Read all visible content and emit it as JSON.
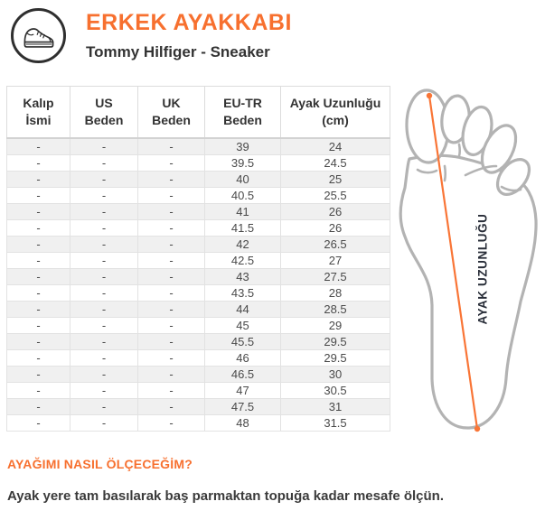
{
  "header": {
    "title": "ERKEK AYAKKABI",
    "subtitle": "Tommy Hilfiger - Sneaker",
    "icon": "sneaker-icon"
  },
  "table": {
    "columns": [
      "Kalıp\nİsmi",
      "US\nBeden",
      "UK\nBeden",
      "EU-TR\nBeden",
      "Ayak Uzunluğu\n(cm)"
    ],
    "rows": [
      [
        "-",
        "-",
        "-",
        "39",
        "24"
      ],
      [
        "-",
        "-",
        "-",
        "39.5",
        "24.5"
      ],
      [
        "-",
        "-",
        "-",
        "40",
        "25"
      ],
      [
        "-",
        "-",
        "-",
        "40.5",
        "25.5"
      ],
      [
        "-",
        "-",
        "-",
        "41",
        "26"
      ],
      [
        "-",
        "-",
        "-",
        "41.5",
        "26"
      ],
      [
        "-",
        "-",
        "-",
        "42",
        "26.5"
      ],
      [
        "-",
        "-",
        "-",
        "42.5",
        "27"
      ],
      [
        "-",
        "-",
        "-",
        "43",
        "27.5"
      ],
      [
        "-",
        "-",
        "-",
        "43.5",
        "28"
      ],
      [
        "-",
        "-",
        "-",
        "44",
        "28.5"
      ],
      [
        "-",
        "-",
        "-",
        "45",
        "29"
      ],
      [
        "-",
        "-",
        "-",
        "45.5",
        "29.5"
      ],
      [
        "-",
        "-",
        "-",
        "46",
        "29.5"
      ],
      [
        "-",
        "-",
        "-",
        "46.5",
        "30"
      ],
      [
        "-",
        "-",
        "-",
        "47",
        "30.5"
      ],
      [
        "-",
        "-",
        "-",
        "47.5",
        "31"
      ],
      [
        "-",
        "-",
        "-",
        "48",
        "31.5"
      ]
    ]
  },
  "diagram": {
    "label": "AYAK UZUNLUĞU",
    "icon": "foot-sole-illustration"
  },
  "footer": {
    "heading": "AYAĞIMI NASIL ÖLÇECEĞİM?",
    "body": "Ayak yere tam basılarak baş parmaktan topuğa kadar mesafe ölçün."
  },
  "colors": {
    "accent": "#f7702f",
    "text_dark": "#3a3a3a",
    "table_border": "#e2e2e2",
    "row_alt": "#f0f0f0",
    "foot_outline": "#b3b3b3",
    "label_dark": "#272c37",
    "measure_line": "#f97536"
  }
}
